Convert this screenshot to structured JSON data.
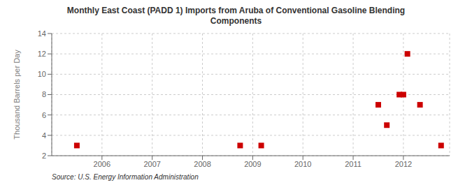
{
  "chart_data": {
    "type": "scatter",
    "title": "Monthly East Coast (PADD 1) Imports from Aruba of Conventional Gasoline Blending\nComponents",
    "ylabel": "Thousand Barrels per Day",
    "annotations": [
      "Source: U.S. Energy Information Administration"
    ],
    "x": [
      2005.5,
      2008.75,
      2009.17,
      2011.5,
      2011.67,
      2011.92,
      2012.0,
      2012.08,
      2012.33,
      2012.75
    ],
    "values": [
      3,
      3,
      3,
      7,
      5,
      8,
      8,
      12,
      7,
      3
    ],
    "color": "#cc0000",
    "marker": "square",
    "xlim": [
      2005.0,
      2012.92
    ],
    "xticks": [
      2006,
      2007,
      2008,
      2009,
      2010,
      2011,
      2012
    ],
    "ylim": [
      2,
      14
    ],
    "yticks": [
      2,
      4,
      6,
      8,
      10,
      12,
      14
    ],
    "grid": true
  }
}
